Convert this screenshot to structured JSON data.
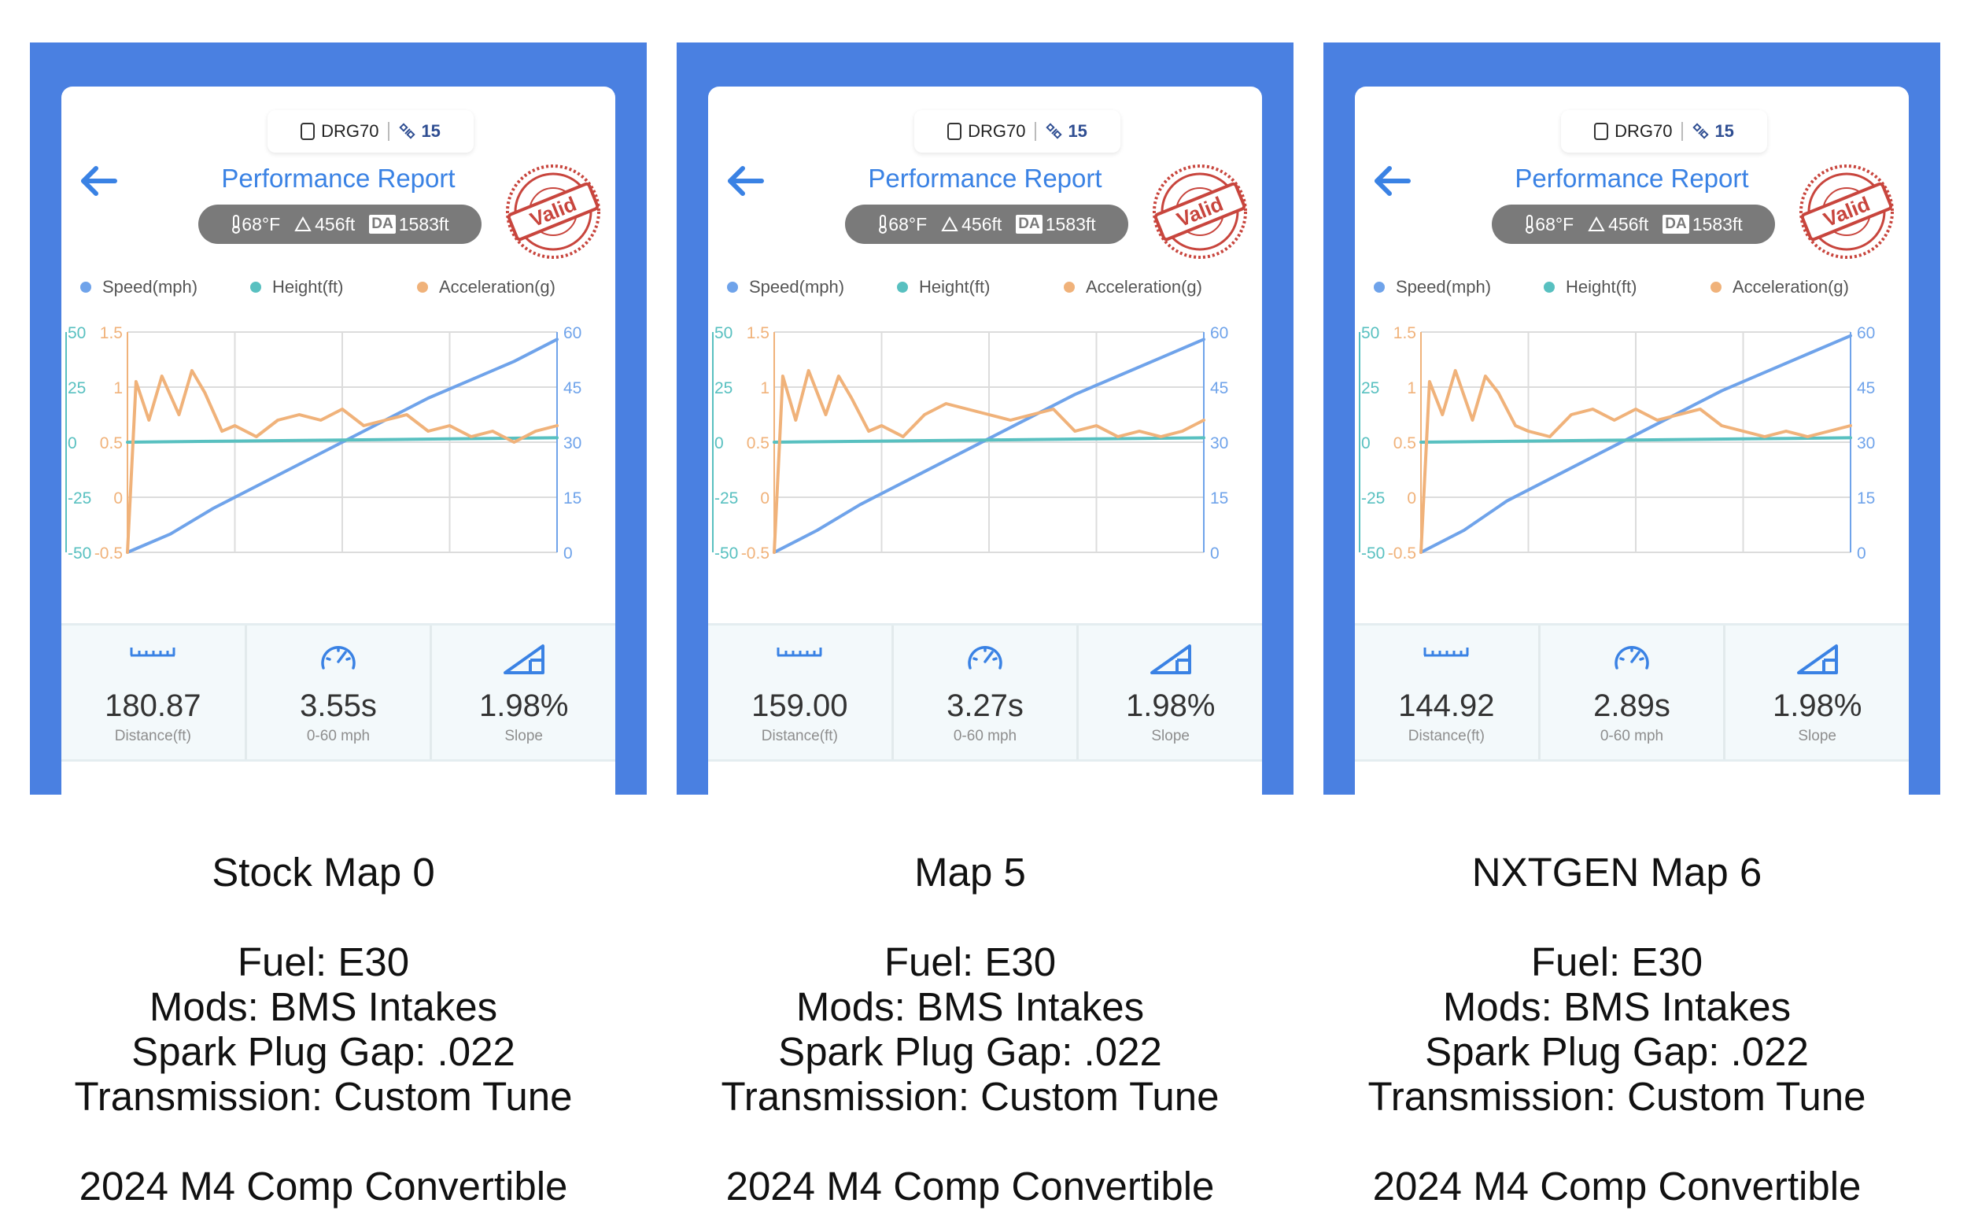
{
  "panels": [
    {
      "device": "DRG70",
      "satellites": "15",
      "title": "Performance Report",
      "stamp_text": "Valid",
      "conditions": {
        "temperature": "68°F",
        "altitude": "456ft",
        "da_label": "DA",
        "density_altitude": "1583ft"
      },
      "legend": {
        "speed": "Speed(mph)",
        "height": "Height(ft)",
        "acceleration": "Acceleration(g)"
      },
      "stats": [
        {
          "icon": "ruler-icon",
          "value": "180.87",
          "label": "Distance(ft)"
        },
        {
          "icon": "speedometer-icon",
          "value": "3.55s",
          "label": "0-60 mph"
        },
        {
          "icon": "slope-icon",
          "value": "1.98%",
          "label": "Slope"
        }
      ],
      "caption": {
        "map_name": "Stock Map 0",
        "fuel": "Fuel: E30",
        "mods": "Mods: BMS Intakes",
        "spark": "Spark Plug Gap: .022",
        "transmission": "Transmission: Custom Tune",
        "car": "2024 M4 Comp Convertible"
      }
    },
    {
      "device": "DRG70",
      "satellites": "15",
      "title": "Performance Report",
      "stamp_text": "Valid",
      "conditions": {
        "temperature": "68°F",
        "altitude": "456ft",
        "da_label": "DA",
        "density_altitude": "1583ft"
      },
      "legend": {
        "speed": "Speed(mph)",
        "height": "Height(ft)",
        "acceleration": "Acceleration(g)"
      },
      "stats": [
        {
          "icon": "ruler-icon",
          "value": "159.00",
          "label": "Distance(ft)"
        },
        {
          "icon": "speedometer-icon",
          "value": "3.27s",
          "label": "0-60 mph"
        },
        {
          "icon": "slope-icon",
          "value": "1.98%",
          "label": "Slope"
        }
      ],
      "caption": {
        "map_name": "Map 5",
        "fuel": "Fuel: E30",
        "mods": "Mods: BMS Intakes",
        "spark": "Spark Plug Gap: .022",
        "transmission": "Transmission: Custom Tune",
        "car": "2024 M4 Comp Convertible"
      }
    },
    {
      "device": "DRG70",
      "satellites": "15",
      "title": "Performance Report",
      "stamp_text": "Valid",
      "conditions": {
        "temperature": "68°F",
        "altitude": "456ft",
        "da_label": "DA",
        "density_altitude": "1583ft"
      },
      "legend": {
        "speed": "Speed(mph)",
        "height": "Height(ft)",
        "acceleration": "Acceleration(g)"
      },
      "stats": [
        {
          "icon": "ruler-icon",
          "value": "144.92",
          "label": "Distance(ft)"
        },
        {
          "icon": "speedometer-icon",
          "value": "2.89s",
          "label": "0-60 mph"
        },
        {
          "icon": "slope-icon",
          "value": "1.98%",
          "label": "Slope"
        }
      ],
      "caption": {
        "map_name": "NXTGEN Map 6",
        "fuel": "Fuel: E30",
        "mods": "Mods: BMS Intakes",
        "spark": "Spark Plug Gap: .022",
        "transmission": "Transmission: Custom Tune",
        "car": "2024 M4 Comp Convertible"
      }
    }
  ],
  "colors": {
    "screen_bg": "#4a80e1",
    "speed": "#6fa3ea",
    "height": "#58c0c0",
    "acceleration": "#f0b27a",
    "title": "#3a82e4",
    "stamp": "#c8453d"
  },
  "chart_data": [
    {
      "type": "line",
      "x_range": [
        0,
        1
      ],
      "axes": {
        "left_outer": {
          "series": "Height(ft)",
          "ticks": [
            "50",
            "25",
            "0",
            "-25",
            "-50"
          ],
          "range": [
            -50,
            50
          ]
        },
        "left_inner": {
          "series": "Acceleration(g)",
          "ticks": [
            "1.5",
            "1",
            "0.5",
            "0",
            "-0.5"
          ],
          "range": [
            -0.5,
            1.5
          ]
        },
        "right": {
          "series": "Speed(mph)",
          "ticks": [
            "60",
            "45",
            "30",
            "15",
            "0"
          ],
          "range": [
            0,
            60
          ]
        }
      },
      "grid": true,
      "series": [
        {
          "name": "Speed(mph)",
          "axis": "right",
          "x": [
            0,
            0.1,
            0.2,
            0.3,
            0.4,
            0.5,
            0.6,
            0.7,
            0.8,
            0.9,
            1.0
          ],
          "values": [
            0,
            5,
            12,
            18,
            24,
            30,
            36,
            42,
            47,
            52,
            58
          ]
        },
        {
          "name": "Height(ft)",
          "axis": "left_outer",
          "x": [
            0,
            0.25,
            0.5,
            0.75,
            1.0
          ],
          "values": [
            0,
            0.5,
            1,
            1.5,
            2
          ]
        },
        {
          "name": "Acceleration(g)",
          "axis": "left_inner",
          "x": [
            0,
            0.02,
            0.05,
            0.08,
            0.12,
            0.15,
            0.18,
            0.22,
            0.25,
            0.3,
            0.35,
            0.4,
            0.45,
            0.5,
            0.55,
            0.6,
            0.65,
            0.7,
            0.75,
            0.8,
            0.85,
            0.9,
            0.95,
            1.0
          ],
          "values": [
            -0.5,
            1.05,
            0.7,
            1.1,
            0.75,
            1.15,
            0.95,
            0.6,
            0.65,
            0.55,
            0.7,
            0.75,
            0.7,
            0.8,
            0.65,
            0.7,
            0.75,
            0.6,
            0.65,
            0.55,
            0.6,
            0.5,
            0.6,
            0.65
          ]
        }
      ]
    },
    {
      "type": "line",
      "x_range": [
        0,
        1
      ],
      "axes": {
        "left_outer": {
          "series": "Height(ft)",
          "ticks": [
            "50",
            "25",
            "0",
            "-25",
            "-50"
          ],
          "range": [
            -50,
            50
          ]
        },
        "left_inner": {
          "series": "Acceleration(g)",
          "ticks": [
            "1.5",
            "1",
            "0.5",
            "0",
            "-0.5"
          ],
          "range": [
            -0.5,
            1.5
          ]
        },
        "right": {
          "series": "Speed(mph)",
          "ticks": [
            "60",
            "45",
            "30",
            "15",
            "0"
          ],
          "range": [
            0,
            60
          ]
        }
      },
      "grid": true,
      "series": [
        {
          "name": "Speed(mph)",
          "axis": "right",
          "x": [
            0,
            0.1,
            0.2,
            0.3,
            0.4,
            0.5,
            0.6,
            0.7,
            0.8,
            0.9,
            1.0
          ],
          "values": [
            0,
            6,
            13,
            19,
            25,
            31,
            37,
            43,
            48,
            53,
            58
          ]
        },
        {
          "name": "Height(ft)",
          "axis": "left_outer",
          "x": [
            0,
            0.25,
            0.5,
            0.75,
            1.0
          ],
          "values": [
            0,
            0.5,
            1,
            1.5,
            2
          ]
        },
        {
          "name": "Acceleration(g)",
          "axis": "left_inner",
          "x": [
            0,
            0.02,
            0.05,
            0.08,
            0.12,
            0.15,
            0.18,
            0.22,
            0.25,
            0.3,
            0.35,
            0.4,
            0.45,
            0.5,
            0.55,
            0.6,
            0.65,
            0.7,
            0.75,
            0.8,
            0.85,
            0.9,
            0.95,
            1.0
          ],
          "values": [
            -0.5,
            1.1,
            0.7,
            1.15,
            0.75,
            1.1,
            0.9,
            0.6,
            0.65,
            0.55,
            0.75,
            0.85,
            0.8,
            0.75,
            0.7,
            0.75,
            0.8,
            0.6,
            0.65,
            0.55,
            0.6,
            0.55,
            0.6,
            0.7
          ]
        }
      ]
    },
    {
      "type": "line",
      "x_range": [
        0,
        1
      ],
      "axes": {
        "left_outer": {
          "series": "Height(ft)",
          "ticks": [
            "50",
            "25",
            "0",
            "-25",
            "-50"
          ],
          "range": [
            -50,
            50
          ]
        },
        "left_inner": {
          "series": "Acceleration(g)",
          "ticks": [
            "1.5",
            "1",
            "0.5",
            "0",
            "-0.5"
          ],
          "range": [
            -0.5,
            1.5
          ]
        },
        "right": {
          "series": "Speed(mph)",
          "ticks": [
            "60",
            "45",
            "30",
            "15",
            "0"
          ],
          "range": [
            0,
            60
          ]
        }
      },
      "grid": true,
      "series": [
        {
          "name": "Speed(mph)",
          "axis": "right",
          "x": [
            0,
            0.1,
            0.2,
            0.3,
            0.4,
            0.5,
            0.6,
            0.7,
            0.8,
            0.9,
            1.0
          ],
          "values": [
            0,
            6,
            14,
            20,
            26,
            32,
            38,
            44,
            49,
            54,
            59
          ]
        },
        {
          "name": "Height(ft)",
          "axis": "left_outer",
          "x": [
            0,
            0.25,
            0.5,
            0.75,
            1.0
          ],
          "values": [
            0,
            0.5,
            1,
            1.5,
            2
          ]
        },
        {
          "name": "Acceleration(g)",
          "axis": "left_inner",
          "x": [
            0,
            0.02,
            0.05,
            0.08,
            0.12,
            0.15,
            0.18,
            0.22,
            0.25,
            0.3,
            0.35,
            0.4,
            0.45,
            0.5,
            0.55,
            0.6,
            0.65,
            0.7,
            0.75,
            0.8,
            0.85,
            0.9,
            0.95,
            1.0
          ],
          "values": [
            -0.5,
            1.05,
            0.75,
            1.15,
            0.7,
            1.1,
            0.95,
            0.65,
            0.6,
            0.55,
            0.75,
            0.8,
            0.7,
            0.8,
            0.7,
            0.75,
            0.8,
            0.65,
            0.6,
            0.55,
            0.6,
            0.55,
            0.6,
            0.65
          ]
        }
      ]
    }
  ]
}
